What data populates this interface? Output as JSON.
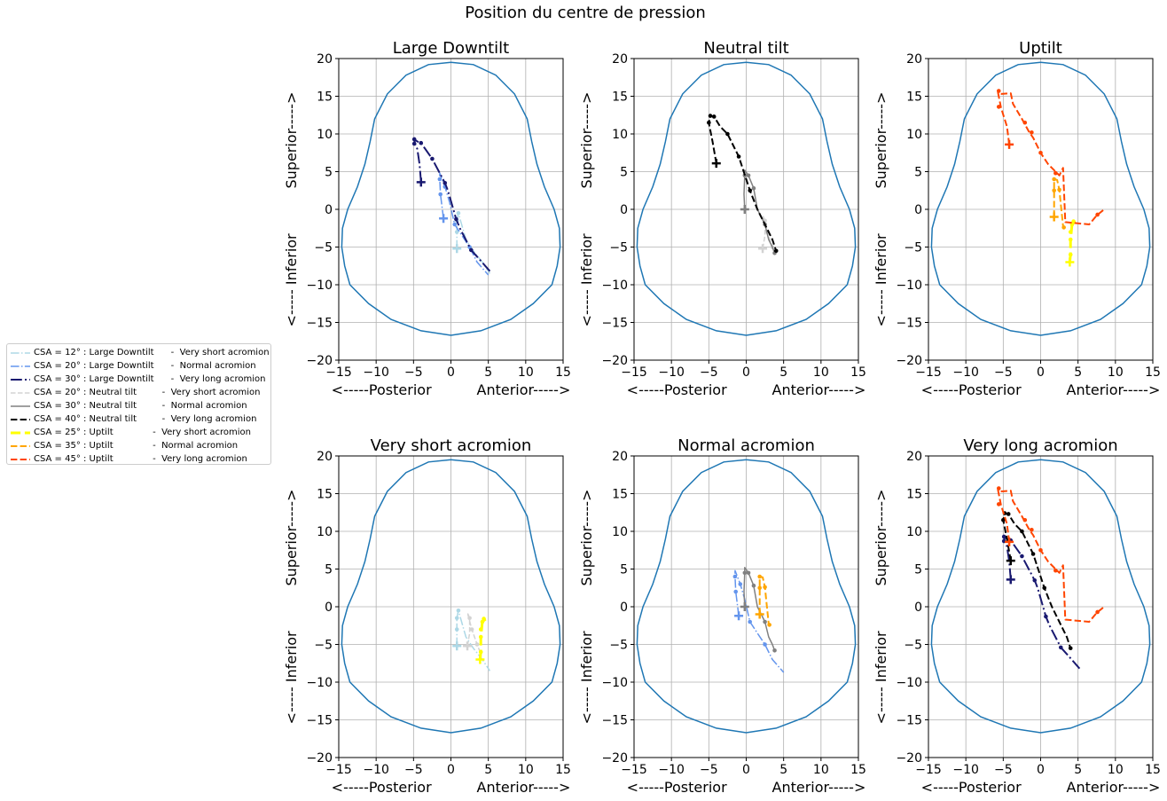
{
  "figure": {
    "suptitle": "Position du centre de pression"
  },
  "legend": {
    "items": [
      {
        "label": "CSA = 12° : Large Downtilt      -  Very short acromion",
        "color": "#add8e6",
        "dash": "dashdot",
        "width": 1.5
      },
      {
        "label": "CSA = 20° : Large Downtilt      -  Normal acromion",
        "color": "#6495ed",
        "dash": "dashdot",
        "width": 1.5
      },
      {
        "label": "CSA = 30° : Large Downtilt      -  Very long acromion",
        "color": "#191970",
        "dash": "dashdot",
        "width": 2
      },
      {
        "label": "CSA = 20° : Neutral tilt         -  Very short acromion",
        "color": "#d3d3d3",
        "dash": "dashed",
        "width": 1.5
      },
      {
        "label": "CSA = 30° : Neutral tilt         -  Normal acromion",
        "color": "#808080",
        "dash": "solid",
        "width": 1.5
      },
      {
        "label": "CSA = 40° : Neutral tilt         -  Very long acromion",
        "color": "#000000",
        "dash": "dashed",
        "width": 2
      },
      {
        "label": "CSA = 25° : Uptilt              -  Very short acromion",
        "color": "#ffff00",
        "dash": "dashed",
        "width": 3
      },
      {
        "label": "CSA = 35° : Uptilt              -  Normal acromion",
        "color": "#ffa500",
        "dash": "dashed",
        "width": 2
      },
      {
        "label": "CSA = 45° : Uptilt              -  Very long acromion",
        "color": "#ff4500",
        "dash": "dashed",
        "width": 2
      }
    ]
  },
  "chart_data": {
    "type": "line",
    "title": "Position du centre de pression",
    "xlabel": "<-----Posterior          Anterior----->",
    "ylabel": "<----- Inferior          Superior----->",
    "xlim": [
      -15,
      15
    ],
    "ylim": [
      -20,
      20
    ],
    "xticks": [
      -15,
      -10,
      -5,
      0,
      5,
      10,
      15
    ],
    "yticks": [
      -20,
      -15,
      -10,
      -5,
      0,
      5,
      10,
      15,
      20
    ],
    "xtick_labels": [
      "−15",
      "−10",
      "−5",
      "0",
      "5",
      "10",
      "15"
    ],
    "ytick_labels": [
      "−20",
      "−15",
      "−10",
      "−5",
      "0",
      "5",
      "10",
      "15",
      "20"
    ],
    "grid": true,
    "outline": {
      "color": "#1f77b4",
      "points": [
        [
          0,
          19.5
        ],
        [
          3,
          19.2
        ],
        [
          6,
          17.8
        ],
        [
          8.5,
          15.3
        ],
        [
          10.2,
          12
        ],
        [
          10.8,
          9
        ],
        [
          11.5,
          6
        ],
        [
          12.5,
          3
        ],
        [
          13.8,
          0
        ],
        [
          14.5,
          -2.5
        ],
        [
          14.6,
          -5
        ],
        [
          14.2,
          -7.5
        ],
        [
          13.5,
          -10
        ],
        [
          11,
          -12.5
        ],
        [
          8,
          -14.6
        ],
        [
          4,
          -16.1
        ],
        [
          0,
          -16.7
        ],
        [
          -4,
          -16.1
        ],
        [
          -8,
          -14.6
        ],
        [
          -11,
          -12.5
        ],
        [
          -13.5,
          -10
        ],
        [
          -14.2,
          -7.5
        ],
        [
          -14.6,
          -5
        ],
        [
          -14.5,
          -2.5
        ],
        [
          -13.8,
          0
        ],
        [
          -12.5,
          3
        ],
        [
          -11.5,
          6
        ],
        [
          -10.8,
          9
        ],
        [
          -10.2,
          12
        ],
        [
          -8.5,
          15.3
        ],
        [
          -6,
          17.8
        ],
        [
          -3,
          19.2
        ],
        [
          0,
          19.5
        ]
      ]
    },
    "series": [
      {
        "id": "s12",
        "points": [
          [
            0.8,
            -5.2
          ],
          [
            0.8,
            -3
          ],
          [
            0.8,
            -1.5
          ],
          [
            1,
            -0.5
          ],
          [
            2,
            -4
          ],
          [
            3,
            -5.5
          ],
          [
            4.2,
            -7
          ],
          [
            5.2,
            -8.5
          ]
        ],
        "start": [
          0.8,
          -5.2
        ],
        "markers": [
          [
            0.8,
            -3
          ],
          [
            0.8,
            -1.5
          ],
          [
            1,
            -0.5
          ]
        ]
      },
      {
        "id": "s20",
        "points": [
          [
            -1,
            -1.2
          ],
          [
            -1.4,
            2
          ],
          [
            -1.5,
            4
          ],
          [
            -1.5,
            4.8
          ],
          [
            -0.8,
            3
          ],
          [
            -0.2,
            1
          ],
          [
            0.5,
            -2
          ],
          [
            1.5,
            -3.5
          ],
          [
            2.5,
            -5
          ],
          [
            3.5,
            -7
          ],
          [
            5,
            -8.7
          ]
        ],
        "start": [
          -1,
          -1.2
        ],
        "markers": [
          [
            -1.4,
            2
          ],
          [
            -1.5,
            4
          ],
          [
            -0.8,
            3
          ],
          [
            0.5,
            -2
          ],
          [
            2.5,
            -5
          ]
        ]
      },
      {
        "id": "s30",
        "points": [
          [
            -4,
            3.6
          ],
          [
            -4.2,
            6
          ],
          [
            -4.5,
            8
          ],
          [
            -4.8,
            8.7
          ],
          [
            -4.9,
            9.3
          ],
          [
            -4.5,
            9.0
          ],
          [
            -4.0,
            8.8
          ],
          [
            -2.5,
            6.7
          ],
          [
            -0.8,
            3.5
          ],
          [
            -0.4,
            2.5
          ],
          [
            0.7,
            -1.3
          ],
          [
            1.2,
            -2.5
          ],
          [
            2.7,
            -5.4
          ],
          [
            3.8,
            -6.6
          ],
          [
            5.2,
            -8.2
          ]
        ],
        "start": [
          -4,
          3.6
        ],
        "markers": [
          [
            -4.9,
            9.3
          ],
          [
            -4.9,
            8.7
          ],
          [
            -4.0,
            8.8
          ],
          [
            -2.5,
            6.7
          ],
          [
            -0.8,
            3.5
          ],
          [
            0.7,
            -1.3
          ],
          [
            2.7,
            -5.4
          ]
        ]
      },
      {
        "id": "s20n",
        "points": [
          [
            2.2,
            -5.2
          ],
          [
            2.5,
            -3.5
          ],
          [
            2.5,
            -1.5
          ],
          [
            2.2,
            -0.8
          ],
          [
            2.8,
            -3
          ],
          [
            3.5,
            -5
          ],
          [
            3.9,
            -6
          ]
        ],
        "start": [
          2.2,
          -5.2
        ],
        "markers": [
          [
            2.5,
            -1.5
          ],
          [
            2.8,
            -3
          ],
          [
            3.5,
            -5
          ]
        ]
      },
      {
        "id": "s30n",
        "points": [
          [
            -0.2,
            0
          ],
          [
            -0.3,
            2
          ],
          [
            -0.2,
            4.5
          ],
          [
            -0.2,
            5.2
          ],
          [
            0.3,
            4.5
          ],
          [
            1,
            2.8
          ],
          [
            1.5,
            0
          ],
          [
            2,
            -1
          ],
          [
            2.5,
            -2
          ],
          [
            3,
            -4
          ],
          [
            3.5,
            -5
          ],
          [
            3.8,
            -5.8
          ]
        ],
        "start": [
          -0.2,
          0
        ],
        "markers": [
          [
            -0.2,
            4.5
          ],
          [
            0.3,
            4.5
          ],
          [
            1,
            2.8
          ],
          [
            2.5,
            -2
          ],
          [
            3.8,
            -5.8
          ]
        ]
      },
      {
        "id": "s40",
        "points": [
          [
            -4,
            6.1
          ],
          [
            -4.5,
            9
          ],
          [
            -5,
            11.5
          ],
          [
            -4.8,
            12.4
          ],
          [
            -4.3,
            12.3
          ],
          [
            -3.5,
            11
          ],
          [
            -2.5,
            10
          ],
          [
            -1,
            7
          ],
          [
            -0.5,
            5.5
          ],
          [
            0.5,
            2.5
          ],
          [
            1.5,
            0
          ],
          [
            2.5,
            -2
          ],
          [
            3.5,
            -4
          ],
          [
            4,
            -5.5
          ]
        ],
        "start": [
          -4,
          6.1
        ],
        "markers": [
          [
            -5,
            11.5
          ],
          [
            -4.8,
            12.4
          ],
          [
            -4.3,
            12.3
          ],
          [
            -2.5,
            10
          ],
          [
            -1,
            7
          ],
          [
            0.5,
            2.5
          ],
          [
            4,
            -5.5
          ]
        ]
      },
      {
        "id": "s25",
        "points": [
          [
            3.9,
            -7
          ],
          [
            4.0,
            -6
          ],
          [
            4,
            -4
          ],
          [
            4.1,
            -3
          ],
          [
            4.2,
            -2
          ],
          [
            4.4,
            -1.6
          ],
          [
            4.6,
            -1.9
          ]
        ],
        "start": [
          3.9,
          -7
        ],
        "markers": [
          [
            4.0,
            -6
          ],
          [
            4,
            -4
          ],
          [
            4,
            -3
          ],
          [
            4.2,
            -2
          ],
          [
            4.4,
            -1.6
          ]
        ]
      },
      {
        "id": "s35",
        "points": [
          [
            1.8,
            -1
          ],
          [
            1.8,
            1
          ],
          [
            1.8,
            2.5
          ],
          [
            1.8,
            4
          ],
          [
            2.2,
            3.9
          ],
          [
            2.5,
            2.6
          ],
          [
            2.7,
            0.6
          ],
          [
            3,
            -2.2
          ],
          [
            3.1,
            -2.4
          ]
        ],
        "start": [
          1.8,
          -1
        ],
        "markers": [
          [
            1.8,
            2.5
          ],
          [
            1.8,
            4
          ],
          [
            2.5,
            2.6
          ],
          [
            3.1,
            -2.4
          ]
        ]
      },
      {
        "id": "s45",
        "points": [
          [
            -4.2,
            8.6
          ],
          [
            -4.5,
            11
          ],
          [
            -5.3,
            13.5
          ],
          [
            -5.7,
            15.5
          ],
          [
            -5.2,
            15.3
          ],
          [
            -4.0,
            15.4
          ],
          [
            -3.7,
            14
          ],
          [
            -2.5,
            12
          ],
          [
            -1.5,
            10.2
          ],
          [
            -1,
            9.5
          ],
          [
            -0.5,
            8.5
          ],
          [
            0,
            7.5
          ],
          [
            1,
            6
          ],
          [
            2.5,
            4.5
          ],
          [
            3.0,
            5.5
          ],
          [
            3.3,
            -1.7
          ],
          [
            6.5,
            -2
          ],
          [
            7.5,
            -0.8
          ],
          [
            8.5,
            0
          ]
        ],
        "start": [
          -4.2,
          8.6
        ],
        "markers": [
          [
            -5.6,
            15.7
          ],
          [
            -5.6,
            13.6
          ],
          [
            -2.1,
            11.5
          ],
          [
            -1.2,
            10.2
          ],
          [
            0,
            7.5
          ],
          [
            2,
            4.8
          ],
          [
            7.6,
            -0.7
          ]
        ]
      }
    ],
    "subplots": [
      {
        "title": "Large Downtilt",
        "series": [
          "s12",
          "s20",
          "s30"
        ]
      },
      {
        "title": "Neutral tilt",
        "series": [
          "s20n",
          "s30n",
          "s40"
        ]
      },
      {
        "title": "Uptilt",
        "series": [
          "s25",
          "s35",
          "s45"
        ]
      },
      {
        "title": "Very short acromion",
        "series": [
          "s12",
          "s20n",
          "s25"
        ]
      },
      {
        "title": "Normal acromion",
        "series": [
          "s20",
          "s30n",
          "s35"
        ]
      },
      {
        "title": "Very long acromion",
        "series": [
          "s30",
          "s40",
          "s45"
        ]
      }
    ]
  }
}
